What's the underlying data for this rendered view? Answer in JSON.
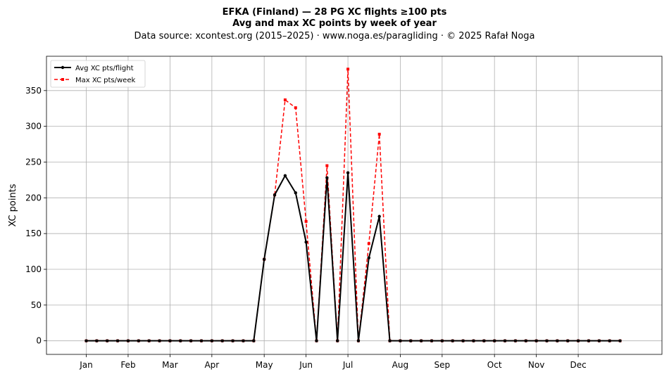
{
  "header": {
    "title": "EFKA (Finland)  —  28 PG XC flights ≥100 pts",
    "subtitle": "Avg and max XC points by week of year",
    "source": "Data source: xcontest.org (2015–2025)  ·  www.noga.es/paragliding  ·  © 2025 Rafał Noga"
  },
  "chart_data": {
    "type": "line",
    "title": "EFKA (Finland)  —  28 PG XC flights ≥100 pts",
    "subtitle": "Avg and max XC points by week of year",
    "xlabel": "",
    "ylabel": "XC points",
    "x": [
      1,
      2,
      3,
      4,
      5,
      6,
      7,
      8,
      9,
      10,
      11,
      12,
      13,
      14,
      15,
      16,
      17,
      18,
      19,
      20,
      21,
      22,
      23,
      24,
      25,
      26,
      27,
      28,
      29,
      30,
      31,
      32,
      33,
      34,
      35,
      36,
      37,
      38,
      39,
      40,
      41,
      42,
      43,
      44,
      45,
      46,
      47,
      48,
      49,
      50,
      51,
      52
    ],
    "x_ticks": [
      {
        "label": "Jan",
        "week": 1
      },
      {
        "label": "Feb",
        "week": 5
      },
      {
        "label": "Mar",
        "week": 9
      },
      {
        "label": "Apr",
        "week": 13
      },
      {
        "label": "May",
        "week": 18
      },
      {
        "label": "Jun",
        "week": 22
      },
      {
        "label": "Jul",
        "week": 26
      },
      {
        "label": "Aug",
        "week": 31
      },
      {
        "label": "Sep",
        "week": 35
      },
      {
        "label": "Oct",
        "week": 40
      },
      {
        "label": "Nov",
        "week": 44
      },
      {
        "label": "Dec",
        "week": 48
      }
    ],
    "y_ticks": [
      0,
      50,
      100,
      150,
      200,
      250,
      300,
      350
    ],
    "xlim": [
      -2.8,
      56
    ],
    "ylim": [
      -19,
      398
    ],
    "grid": true,
    "legend_position": "top-left",
    "series": [
      {
        "name": "Avg XC pts/flight",
        "color": "#000000",
        "style": "solid",
        "marker": "circle",
        "values": [
          0,
          0,
          0,
          0,
          0,
          0,
          0,
          0,
          0,
          0,
          0,
          0,
          0,
          0,
          0,
          0,
          0,
          114,
          204,
          231,
          207,
          138,
          0,
          228,
          0,
          235,
          0,
          116,
          174,
          0,
          0,
          0,
          0,
          0,
          0,
          0,
          0,
          0,
          0,
          0,
          0,
          0,
          0,
          0,
          0,
          0,
          0,
          0,
          0,
          0,
          0,
          0
        ]
      },
      {
        "name": "Max XC pts/week",
        "color": "#ff0000",
        "style": "dashed",
        "marker": "square",
        "values": [
          0,
          0,
          0,
          0,
          0,
          0,
          0,
          0,
          0,
          0,
          0,
          0,
          0,
          0,
          0,
          0,
          0,
          114,
          204,
          337,
          326,
          167,
          0,
          245,
          0,
          380,
          0,
          136,
          289,
          0,
          0,
          0,
          0,
          0,
          0,
          0,
          0,
          0,
          0,
          0,
          0,
          0,
          0,
          0,
          0,
          0,
          0,
          0,
          0,
          0,
          0,
          0
        ]
      }
    ]
  }
}
